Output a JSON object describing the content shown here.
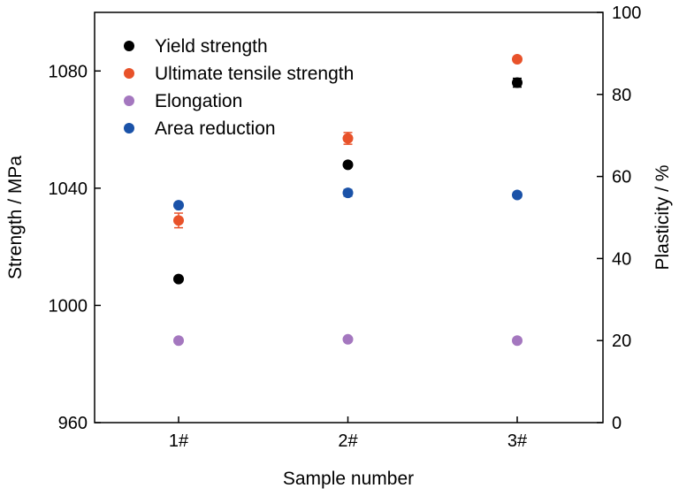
{
  "chart_data": {
    "type": "scatter",
    "xlabel": "Sample number",
    "ylabel_left": "Strength / MPa",
    "ylabel_right": "Plasticity / %",
    "categories": [
      "1#",
      "2#",
      "3#"
    ],
    "ylim_left": [
      960,
      1100
    ],
    "yticks_left": [
      "960",
      "1000",
      "1040",
      "1080"
    ],
    "ylim_right": [
      0,
      100
    ],
    "yticks_right": [
      "0",
      "20",
      "40",
      "60",
      "80",
      "100"
    ],
    "legend_position": "top-left",
    "series": [
      {
        "name": "Yield strength",
        "axis": "left",
        "color": "#000000",
        "values": [
          1009,
          1048,
          1076
        ],
        "errors": [
          0,
          0,
          1.5
        ]
      },
      {
        "name": "Ultimate tensile strength",
        "axis": "left",
        "color": "#e8522a",
        "values": [
          1029,
          1057,
          1084
        ],
        "errors": [
          2.5,
          2,
          0
        ]
      },
      {
        "name": "Elongation",
        "axis": "right",
        "color": "#a477bf",
        "values": [
          20.0,
          20.3,
          20.0
        ],
        "errors": [
          0,
          0,
          0
        ]
      },
      {
        "name": "Area reduction",
        "axis": "right",
        "color": "#1a52a8",
        "values": [
          53,
          56,
          55.5
        ],
        "errors": [
          0,
          0.8,
          0
        ]
      }
    ]
  }
}
